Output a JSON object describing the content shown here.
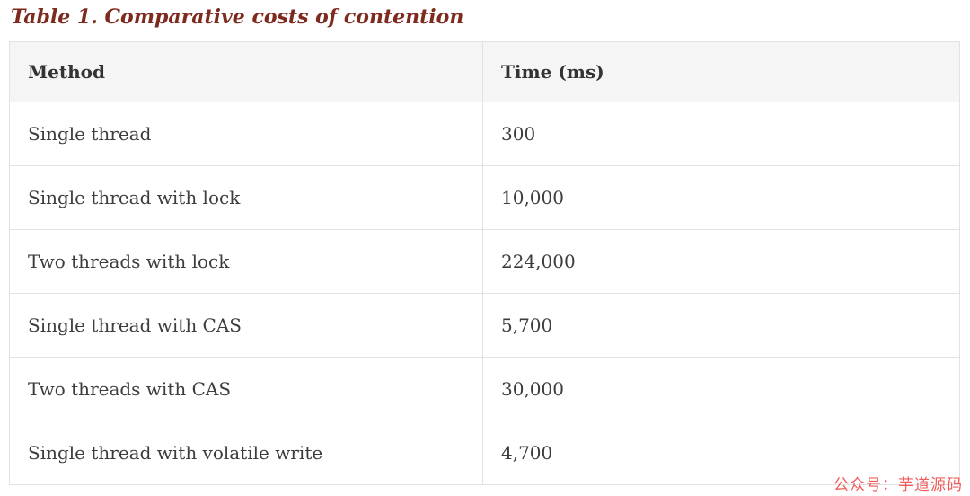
{
  "title": "Table 1. Comparative costs of contention",
  "table": {
    "columns": [
      "Method",
      "Time (ms)"
    ],
    "rows": [
      [
        "Single thread",
        "300"
      ],
      [
        "Single thread with lock",
        "10,000"
      ],
      [
        "Two threads with lock",
        "224,000"
      ],
      [
        "Single thread with CAS",
        "5,700"
      ],
      [
        "Two threads with CAS",
        "30,000"
      ],
      [
        "Single thread with volatile write",
        "4,700"
      ]
    ]
  },
  "watermark": "公众号：芋道源码",
  "colors": {
    "title_text": "#7e2a1e",
    "header_background": "#f5f5f5",
    "table_border": "#e2e2e2",
    "body_text": "#3d3d3d",
    "watermark_text": "#f15b5b"
  }
}
